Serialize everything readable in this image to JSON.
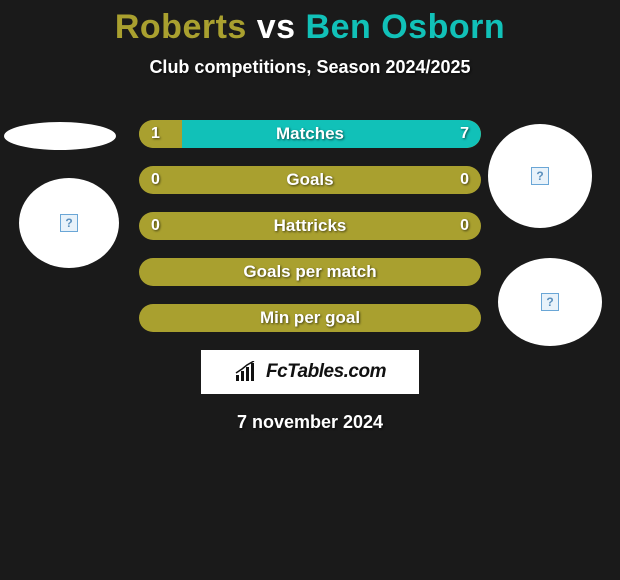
{
  "title": {
    "player1": "Roberts",
    "vs": " vs ",
    "player2": "Ben Osborn",
    "color1": "#a9a02f",
    "color2": "#11c1b8"
  },
  "subtitle": "Club competitions, Season 2024/2025",
  "colors": {
    "player1_bar": "#a9a02f",
    "player2_bar": "#11c1b8",
    "neutral_bar": "#a9a02f",
    "background": "#1a1a1a",
    "text": "#ffffff"
  },
  "bars": [
    {
      "label": "Matches",
      "left_val": "1",
      "right_val": "7",
      "left_pct": 12.5,
      "right_pct": 87.5,
      "show_values": true,
      "two_tone": true
    },
    {
      "label": "Goals",
      "left_val": "0",
      "right_val": "0",
      "left_pct": 0,
      "right_pct": 0,
      "show_values": true,
      "two_tone": false
    },
    {
      "label": "Hattricks",
      "left_val": "0",
      "right_val": "0",
      "left_pct": 0,
      "right_pct": 0,
      "show_values": true,
      "two_tone": false
    },
    {
      "label": "Goals per match",
      "left_val": "",
      "right_val": "",
      "left_pct": 0,
      "right_pct": 0,
      "show_values": false,
      "two_tone": false
    },
    {
      "label": "Min per goal",
      "left_val": "",
      "right_val": "",
      "left_pct": 0,
      "right_pct": 0,
      "show_values": false,
      "two_tone": false
    }
  ],
  "logo": {
    "text": "FcTables.com"
  },
  "date": "7 november 2024",
  "placeholder_icon": "?"
}
